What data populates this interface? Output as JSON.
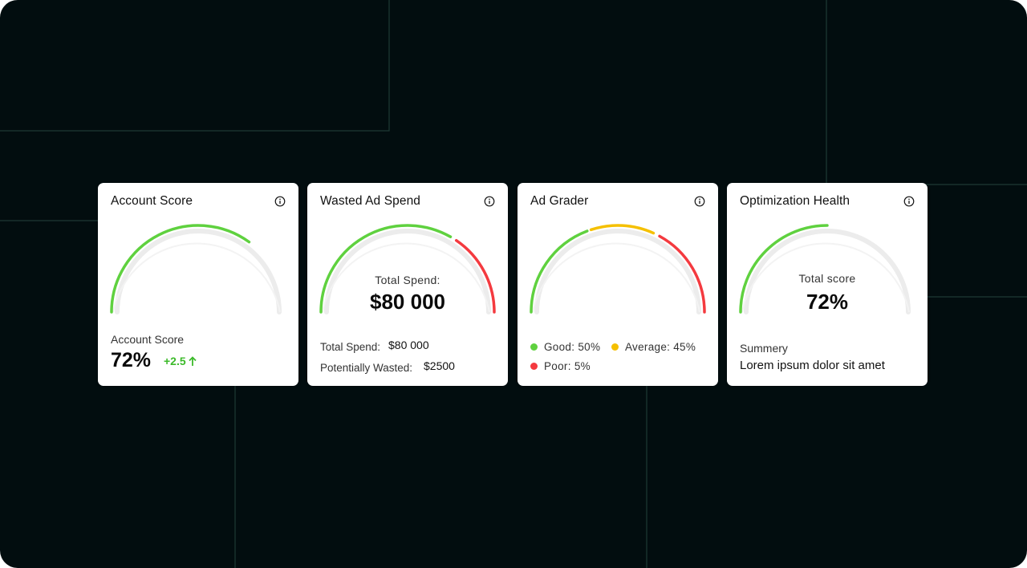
{
  "colors": {
    "background": "#020d0f",
    "grid_line": "#1e3a35",
    "card": "#ffffff",
    "good": "#5fd13f",
    "average": "#f5c000",
    "poor": "#f43a3f",
    "track": "#ececec",
    "delta_positive": "#3cba2a"
  },
  "cards": {
    "account_score": {
      "title": "Account Score",
      "info_icon": "info-icon",
      "gauge_fill": 0.7,
      "label": "Account Score",
      "value": "72%",
      "delta": "+2.5",
      "delta_icon": "arrow-up-icon"
    },
    "wasted_ad_spend": {
      "title": "Wasted Ad Spend",
      "info_icon": "info-icon",
      "center_label": "Total Spend:",
      "center_value": "$80 000",
      "rows": [
        {
          "label": "Total Spend:",
          "value": "$80 000"
        },
        {
          "label": "Potentially Wasted:",
          "value": "$2500"
        }
      ]
    },
    "ad_grader": {
      "title": "Ad Grader",
      "info_icon": "info-icon",
      "legend": [
        {
          "label": "Good: 50%",
          "color": "#5fd13f"
        },
        {
          "label": "Average: 45%",
          "color": "#f5c000"
        },
        {
          "label": "Poor: 5%",
          "color": "#f43a3f"
        }
      ]
    },
    "optimization_health": {
      "title": "Optimization Health",
      "info_icon": "info-icon",
      "gauge_fill": 0.5,
      "center_label": "Total score",
      "center_value": "72%",
      "summary_label": "Summery",
      "summary_text": "Lorem ipsum dolor sit amet"
    }
  }
}
